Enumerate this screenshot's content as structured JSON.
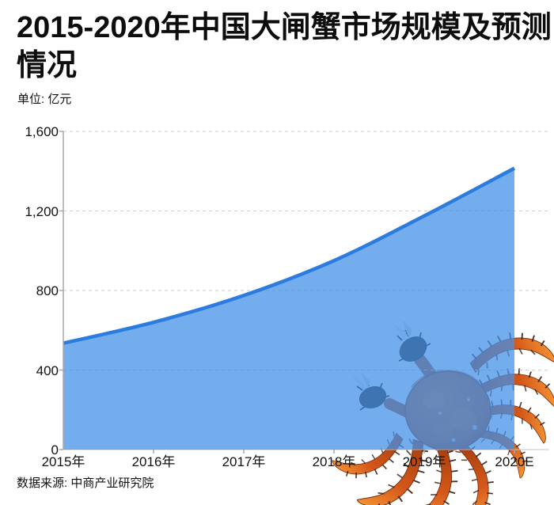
{
  "page": {
    "unit_label": "单位: 亿元",
    "source_label": "数据来源: 中商产业研究院"
  },
  "chart_data": {
    "type": "area",
    "title": "2015-2020年中国大闸蟹市场规模及预测情况",
    "unit": "亿元",
    "categories": [
      "2015年",
      "2016年",
      "2017年",
      "2018年",
      "2019年",
      "2020E"
    ],
    "values": [
      535,
      640,
      775,
      950,
      1175,
      1415
    ],
    "xlabel": "",
    "ylabel": "",
    "ylim": [
      0,
      1600
    ],
    "y_tick_values": [
      0,
      400,
      800,
      1200,
      1600
    ],
    "y_tick_labels": [
      "0",
      "400",
      "800",
      "1,200",
      "1,600"
    ],
    "grid": "horizontal-dashed",
    "legend": "none",
    "line_color": "#2B7CDE",
    "fill_color": "#6FAEF0",
    "source": "数据来源: 中商产业研究院",
    "decoration": "orange hairy-crab photo watermark, bottom-right, behind translucent area fill"
  }
}
